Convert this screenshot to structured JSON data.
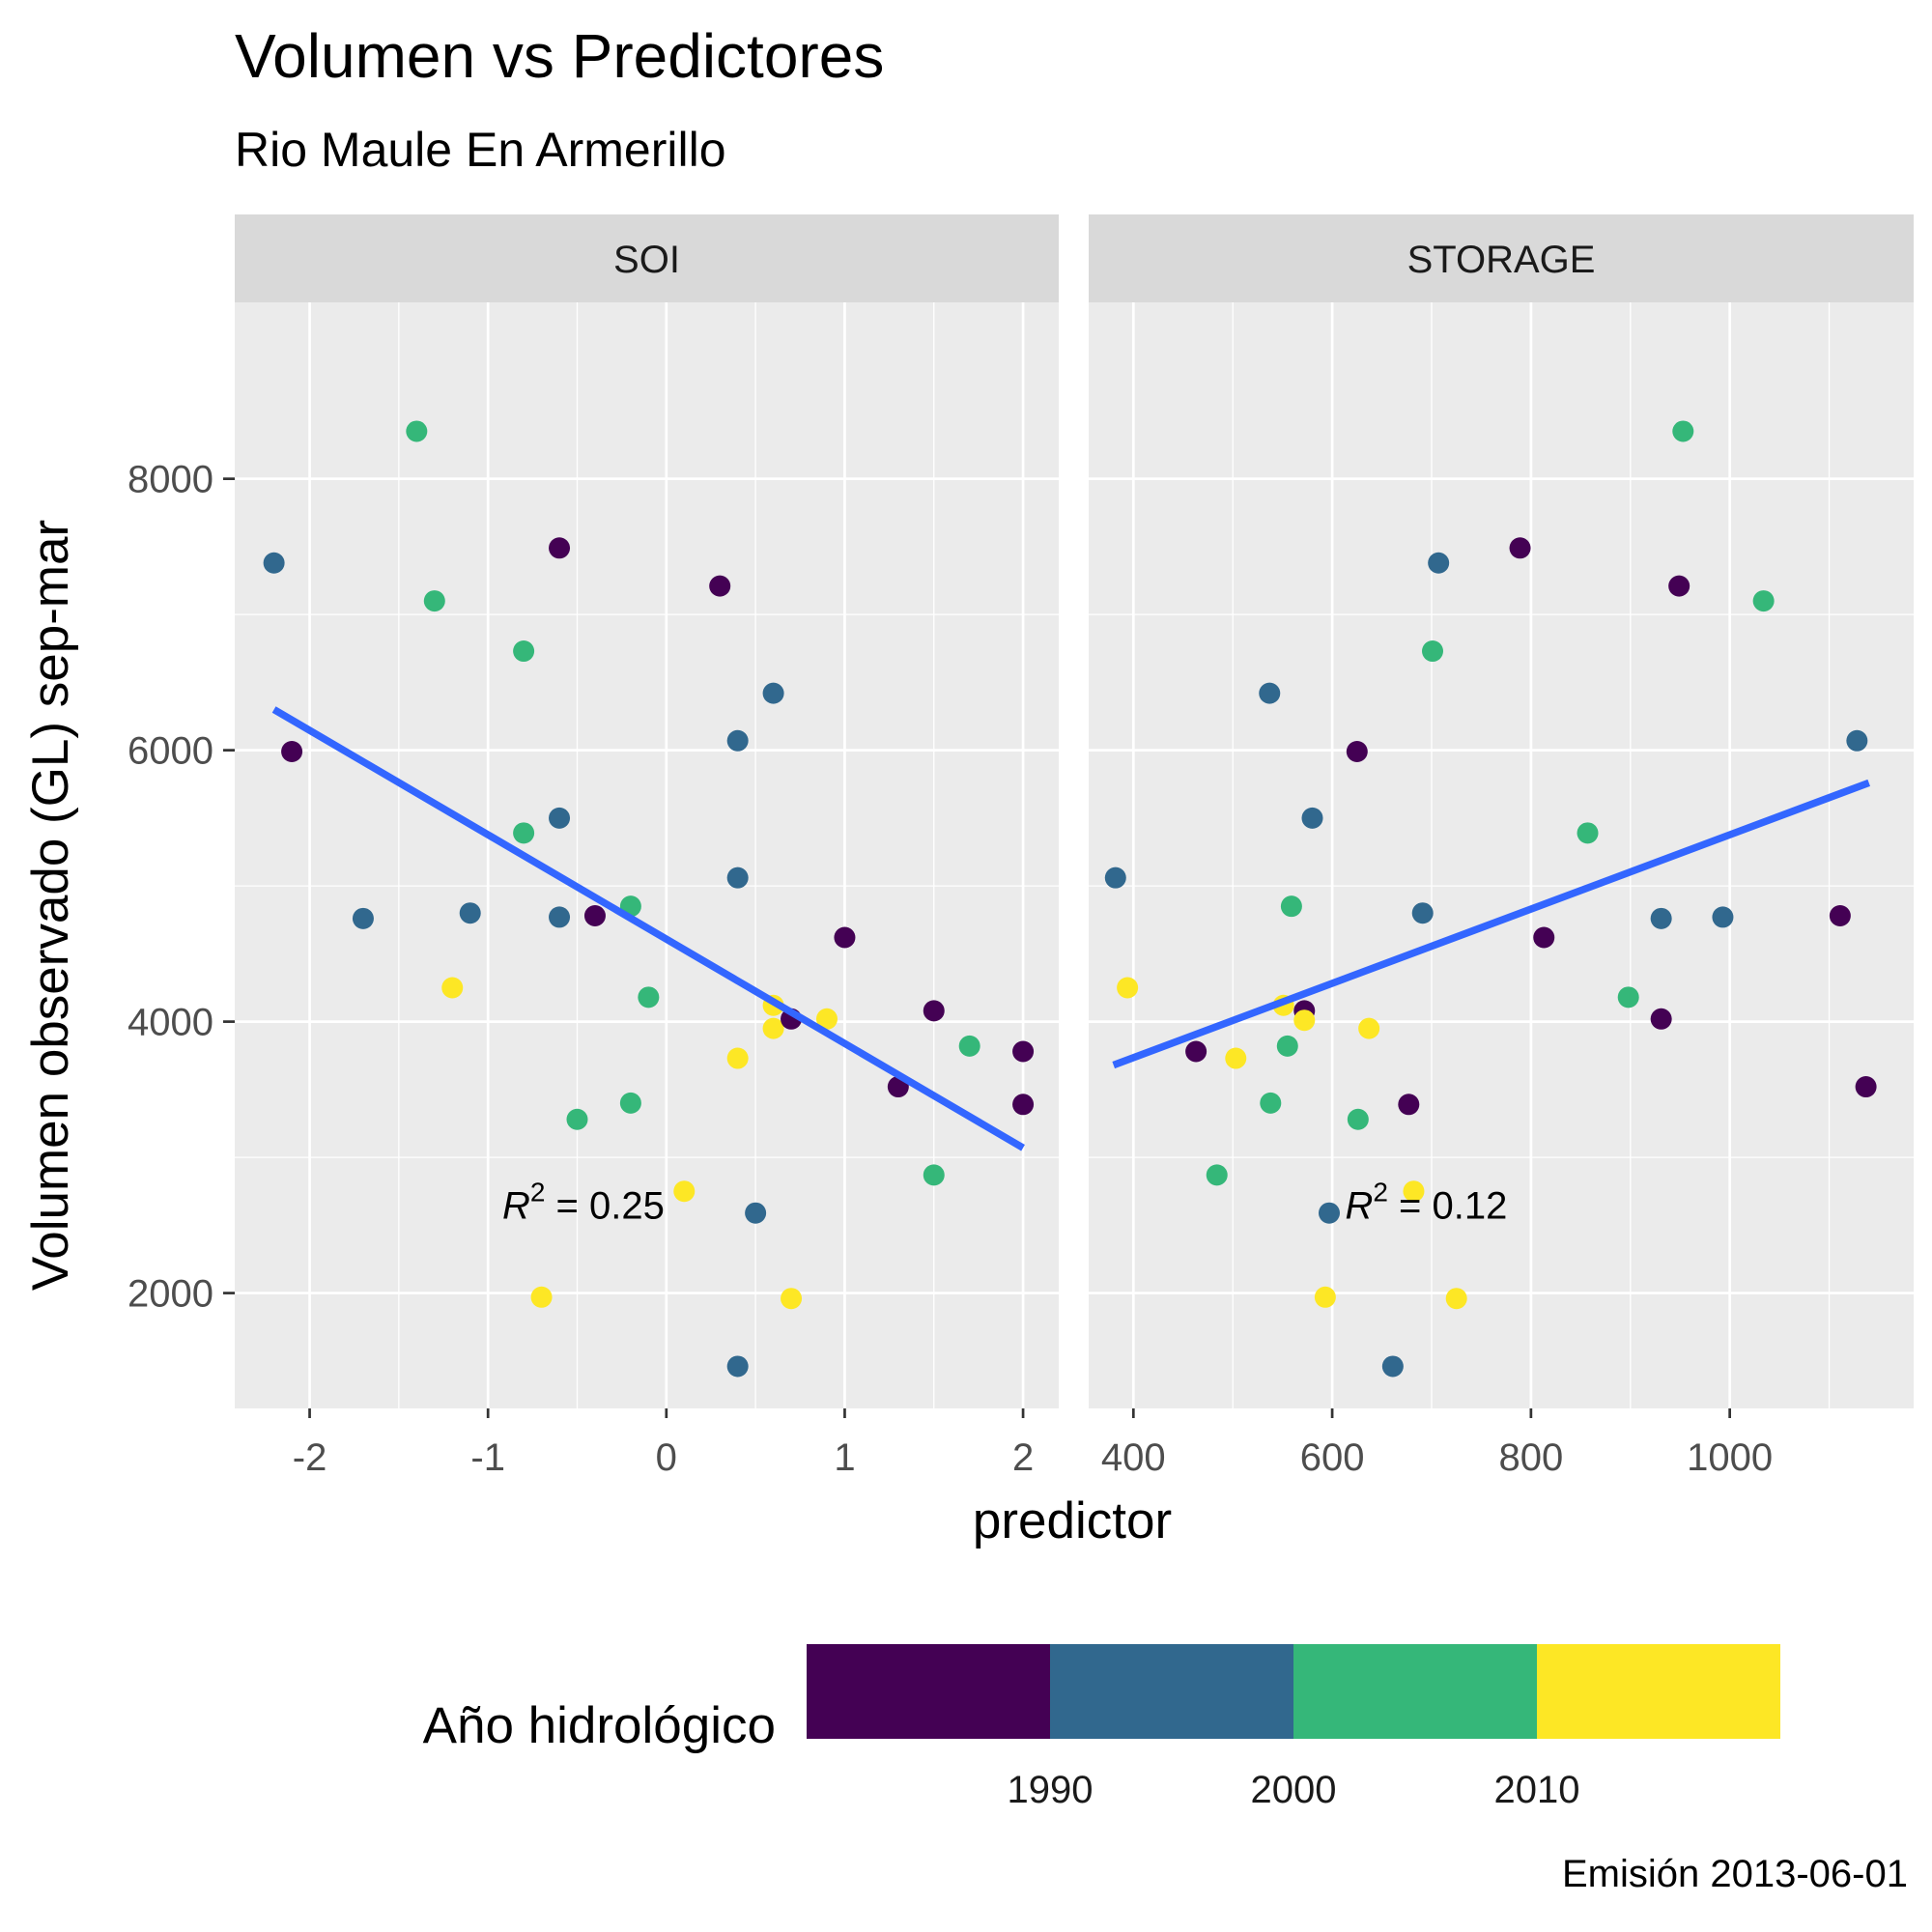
{
  "chart_data": {
    "type": "scatter",
    "title": "Volumen vs Predictores",
    "subtitle": "Rio Maule En Armerillo",
    "xlabel": "predictor",
    "ylabel": "Volumen observado (GL) sep-mar",
    "caption": "Emisión 2013-06-01",
    "grid": true,
    "ylim": [
      1150,
      9300
    ],
    "yticks": [
      2000,
      4000,
      6000,
      8000
    ],
    "legend": {
      "title": "Año hidrológico",
      "position": "bottom",
      "colors": [
        "#440154",
        "#31688E",
        "#35B779",
        "#FDE725"
      ],
      "labels": [
        "1990",
        "2000",
        "2010"
      ]
    },
    "panels": [
      {
        "name": "SOI",
        "xlim": [
          -2.42,
          2.2
        ],
        "xticks": [
          -2,
          -1,
          0,
          1,
          2
        ],
        "xtick_labels": [
          "-2",
          "-1",
          "0",
          "1",
          "2"
        ],
        "fit": {
          "x": [
            -2.2,
            2.0
          ],
          "y": [
            6300,
            3070
          ],
          "color": "#3366FF"
        },
        "r2": {
          "label": "R",
          "sup": "2",
          "text": " = 0.25",
          "x": -0.92,
          "y": 2650
        },
        "points": [
          {
            "x": -2.2,
            "y": 7380,
            "color": "#31688E"
          },
          {
            "x": -2.1,
            "y": 5990,
            "color": "#440154"
          },
          {
            "x": -1.7,
            "y": 4760,
            "color": "#31688E"
          },
          {
            "x": -1.4,
            "y": 8350,
            "color": "#35B779"
          },
          {
            "x": -1.3,
            "y": 7100,
            "color": "#35B779"
          },
          {
            "x": -1.2,
            "y": 4250,
            "color": "#FDE725"
          },
          {
            "x": -1.1,
            "y": 4800,
            "color": "#31688E"
          },
          {
            "x": -0.8,
            "y": 6730,
            "color": "#35B779"
          },
          {
            "x": -0.8,
            "y": 5390,
            "color": "#35B779"
          },
          {
            "x": -0.7,
            "y": 1970,
            "color": "#FDE725"
          },
          {
            "x": -0.6,
            "y": 7490,
            "color": "#440154"
          },
          {
            "x": -0.6,
            "y": 5500,
            "color": "#31688E"
          },
          {
            "x": -0.6,
            "y": 4770,
            "color": "#31688E"
          },
          {
            "x": -0.5,
            "y": 3280,
            "color": "#35B779"
          },
          {
            "x": -0.4,
            "y": 4780,
            "color": "#440154"
          },
          {
            "x": -0.2,
            "y": 4850,
            "color": "#35B779"
          },
          {
            "x": -0.2,
            "y": 3400,
            "color": "#35B779"
          },
          {
            "x": -0.1,
            "y": 4180,
            "color": "#35B779"
          },
          {
            "x": 0.1,
            "y": 2750,
            "color": "#FDE725"
          },
          {
            "x": 0.3,
            "y": 7210,
            "color": "#440154"
          },
          {
            "x": 0.4,
            "y": 6070,
            "color": "#31688E"
          },
          {
            "x": 0.4,
            "y": 5060,
            "color": "#31688E"
          },
          {
            "x": 0.4,
            "y": 3730,
            "color": "#FDE725"
          },
          {
            "x": 0.4,
            "y": 1460,
            "color": "#31688E"
          },
          {
            "x": 0.5,
            "y": 2590,
            "color": "#31688E"
          },
          {
            "x": 0.6,
            "y": 6420,
            "color": "#31688E"
          },
          {
            "x": 0.6,
            "y": 4120,
            "color": "#FDE725"
          },
          {
            "x": 0.6,
            "y": 3950,
            "color": "#FDE725"
          },
          {
            "x": 0.7,
            "y": 4020,
            "color": "#440154"
          },
          {
            "x": 0.7,
            "y": 1960,
            "color": "#FDE725"
          },
          {
            "x": 0.9,
            "y": 4020,
            "color": "#FDE725"
          },
          {
            "x": 1.0,
            "y": 4620,
            "color": "#440154"
          },
          {
            "x": 1.3,
            "y": 3520,
            "color": "#440154"
          },
          {
            "x": 1.5,
            "y": 4080,
            "color": "#440154"
          },
          {
            "x": 1.5,
            "y": 2870,
            "color": "#35B779"
          },
          {
            "x": 1.7,
            "y": 3820,
            "color": "#35B779"
          },
          {
            "x": 2.0,
            "y": 3780,
            "color": "#440154"
          },
          {
            "x": 2.0,
            "y": 3390,
            "color": "#440154"
          }
        ]
      },
      {
        "name": "STORAGE",
        "xlim": [
          355,
          1185
        ],
        "xticks": [
          400,
          600,
          800,
          1000
        ],
        "xtick_labels": [
          "400",
          "600",
          "800",
          "1000"
        ],
        "fit": {
          "x": [
            380,
            1140
          ],
          "y": [
            3680,
            5760
          ],
          "color": "#3366FF"
        },
        "r2": {
          "label": "R",
          "sup": "2",
          "text": " = 0.12",
          "x": 613,
          "y": 2650
        },
        "points": [
          {
            "x": 382,
            "y": 5060,
            "color": "#31688E"
          },
          {
            "x": 394,
            "y": 4250,
            "color": "#FDE725"
          },
          {
            "x": 463,
            "y": 3780,
            "color": "#440154"
          },
          {
            "x": 484,
            "y": 2870,
            "color": "#35B779"
          },
          {
            "x": 503,
            "y": 3730,
            "color": "#FDE725"
          },
          {
            "x": 537,
            "y": 6420,
            "color": "#31688E"
          },
          {
            "x": 538,
            "y": 3400,
            "color": "#35B779"
          },
          {
            "x": 551,
            "y": 4120,
            "color": "#FDE725"
          },
          {
            "x": 555,
            "y": 3820,
            "color": "#35B779"
          },
          {
            "x": 559,
            "y": 4850,
            "color": "#35B779"
          },
          {
            "x": 572,
            "y": 4080,
            "color": "#440154"
          },
          {
            "x": 572,
            "y": 4010,
            "color": "#FDE725"
          },
          {
            "x": 580,
            "y": 5500,
            "color": "#31688E"
          },
          {
            "x": 593,
            "y": 1970,
            "color": "#FDE725"
          },
          {
            "x": 597,
            "y": 2590,
            "color": "#31688E"
          },
          {
            "x": 625,
            "y": 5990,
            "color": "#440154"
          },
          {
            "x": 626,
            "y": 3280,
            "color": "#35B779"
          },
          {
            "x": 637,
            "y": 3950,
            "color": "#FDE725"
          },
          {
            "x": 661,
            "y": 1460,
            "color": "#31688E"
          },
          {
            "x": 677,
            "y": 3390,
            "color": "#440154"
          },
          {
            "x": 682,
            "y": 2750,
            "color": "#FDE725"
          },
          {
            "x": 691,
            "y": 4800,
            "color": "#31688E"
          },
          {
            "x": 701,
            "y": 6730,
            "color": "#35B779"
          },
          {
            "x": 707,
            "y": 7380,
            "color": "#31688E"
          },
          {
            "x": 725,
            "y": 1960,
            "color": "#FDE725"
          },
          {
            "x": 789,
            "y": 7490,
            "color": "#440154"
          },
          {
            "x": 813,
            "y": 4620,
            "color": "#440154"
          },
          {
            "x": 857,
            "y": 5390,
            "color": "#35B779"
          },
          {
            "x": 898,
            "y": 4180,
            "color": "#35B779"
          },
          {
            "x": 931,
            "y": 4020,
            "color": "#440154"
          },
          {
            "x": 931,
            "y": 4760,
            "color": "#31688E"
          },
          {
            "x": 949,
            "y": 7210,
            "color": "#440154"
          },
          {
            "x": 953,
            "y": 8350,
            "color": "#35B779"
          },
          {
            "x": 993,
            "y": 4770,
            "color": "#31688E"
          },
          {
            "x": 1034,
            "y": 7100,
            "color": "#35B779"
          },
          {
            "x": 1111,
            "y": 4780,
            "color": "#440154"
          },
          {
            "x": 1128,
            "y": 6070,
            "color": "#31688E"
          },
          {
            "x": 1137,
            "y": 3520,
            "color": "#440154"
          }
        ]
      }
    ]
  }
}
